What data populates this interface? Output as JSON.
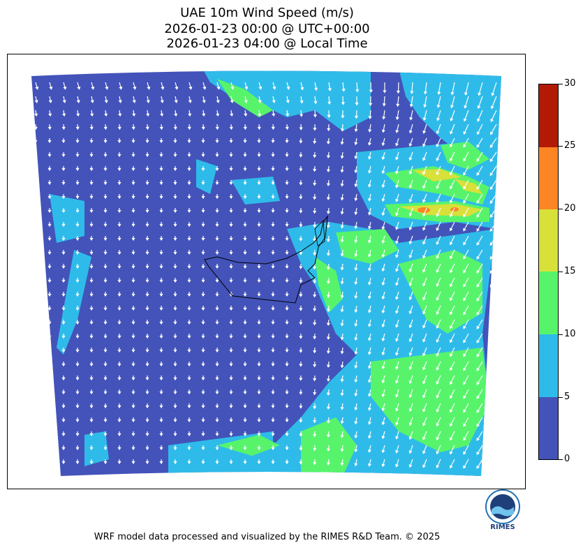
{
  "title": {
    "line1": "UAE 10m Wind Speed (m/s)",
    "line2": "2026-01-23 00:00 @ UTC+00:00",
    "line3": "2026-01-23 04:00 @ Local Time"
  },
  "colorbar": {
    "ticks": [
      "0",
      "5",
      "10",
      "15",
      "20",
      "25",
      "30"
    ],
    "bins": [
      {
        "range": "0-5",
        "color": "#4353b9"
      },
      {
        "range": "5-10",
        "color": "#2fbbe9"
      },
      {
        "range": "10-15",
        "color": "#57f46b"
      },
      {
        "range": "15-20",
        "color": "#d8e03a"
      },
      {
        "range": "20-25",
        "color": "#fd8524"
      },
      {
        "range": "25-30",
        "color": "#b31a05"
      }
    ]
  },
  "logo": {
    "text": "RIMES"
  },
  "footer": "WRF model data processed and visualized by the RIMES R&D Team. © 2025",
  "chart_data": {
    "type": "heatmap",
    "title": "UAE 10m Wind Speed (m/s)",
    "variable": "10m wind speed",
    "units": "m/s",
    "levels": [
      0,
      5,
      10,
      15,
      20,
      25,
      30
    ],
    "colormap": [
      "#4353b9",
      "#2fbbe9",
      "#57f46b",
      "#d8e03a",
      "#fd8524",
      "#b31a05"
    ],
    "overlay": "wind vectors (white arrows)",
    "max_speed_region": "northeast corner, ~20-25 m/s"
  }
}
